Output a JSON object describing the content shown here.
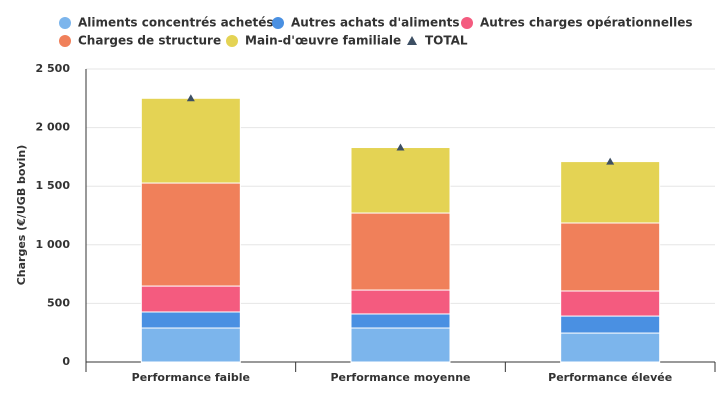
{
  "chart_data": {
    "type": "bar",
    "stacked": true,
    "y_label": "Charges (€/UGB bovin)",
    "categories": [
      "Performance faible",
      "Performance moyenne",
      "Performance élevée"
    ],
    "series": [
      {
        "name": "Aliments concentrés achetés",
        "color": "#7cb5ec",
        "values": [
          290,
          290,
          247
        ]
      },
      {
        "name": "Autres achats d'aliments",
        "color": "#4a90e2",
        "values": [
          137,
          120,
          145
        ]
      },
      {
        "name": "Autres charges opérationnelles",
        "color": "#f45b7f",
        "values": [
          221,
          204,
          214
        ]
      },
      {
        "name": "Charges de structure",
        "color": "#f0805a",
        "values": [
          879,
          657,
          580
        ]
      },
      {
        "name": "Main-d'œuvre familiale",
        "color": "#e4d354",
        "values": [
          723,
          559,
          524
        ]
      },
      {
        "name": "TOTAL",
        "color": "#3d4f63",
        "marker": "triangle",
        "values": [
          2250,
          1830,
          1710
        ]
      }
    ],
    "ylim": [
      0,
      2500
    ],
    "yticks": [
      0,
      {
        "value": 500,
        "label": "500"
      },
      {
        "value": 1000,
        "label": "1 000"
      },
      {
        "value": 1500,
        "label": "1 500"
      },
      {
        "value": 2000,
        "label": "2 000"
      },
      {
        "value": 2500,
        "label": "2 500"
      }
    ],
    "grid": true
  }
}
